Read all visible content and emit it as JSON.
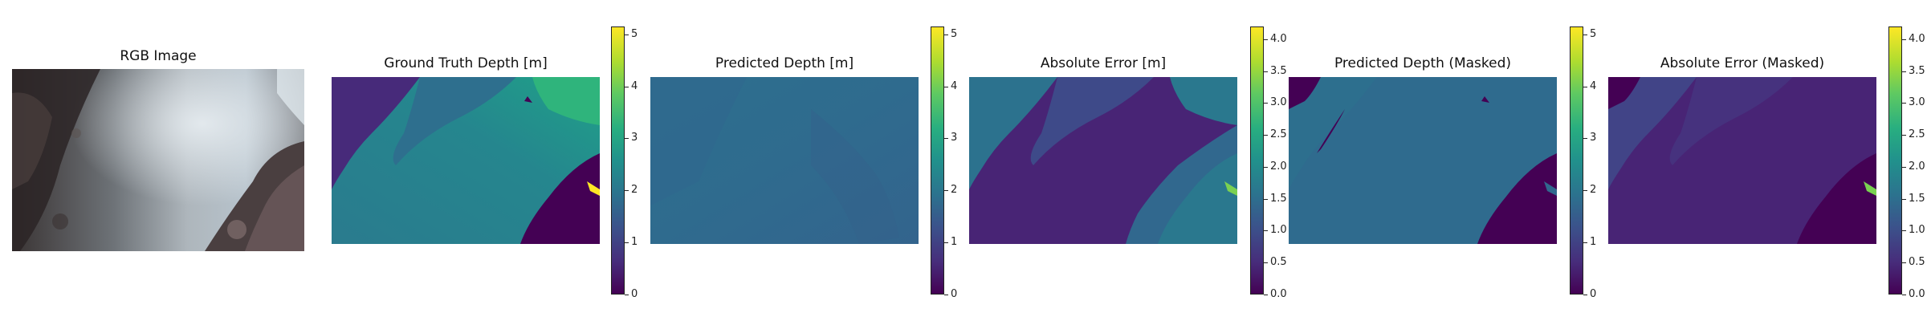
{
  "figure": {
    "panels": [
      {
        "title": "RGB Image"
      },
      {
        "title": "Ground Truth Depth [m]"
      },
      {
        "title": "Predicted Depth [m]"
      },
      {
        "title": "Absolute Error [m]"
      },
      {
        "title": "Predicted Depth (Masked)"
      },
      {
        "title": "Absolute Error (Masked)"
      }
    ],
    "colormap": "viridis"
  },
  "chart_data": [
    {
      "type": "heatmap",
      "title": "RGB Image",
      "content": "photograph"
    },
    {
      "type": "heatmap",
      "title": "Ground Truth Depth [m]",
      "colorbar": {
        "range": [
          0,
          5.15
        ],
        "ticks": [
          "0",
          "1",
          "2",
          "3",
          "4",
          "5"
        ]
      }
    },
    {
      "type": "heatmap",
      "title": "Predicted Depth [m]",
      "colorbar": {
        "range": [
          0,
          5.15
        ],
        "ticks": [
          "0",
          "1",
          "2",
          "3",
          "4",
          "5"
        ]
      }
    },
    {
      "type": "heatmap",
      "title": "Absolute Error [m]",
      "colorbar": {
        "range": [
          0,
          4.2
        ],
        "ticks": [
          "0.0",
          "0.5",
          "1.0",
          "1.5",
          "2.0",
          "2.5",
          "3.0",
          "3.5",
          "4.0"
        ]
      }
    },
    {
      "type": "heatmap",
      "title": "Predicted Depth (Masked)",
      "colorbar": {
        "range": [
          0,
          5.15
        ],
        "ticks": [
          "0",
          "1",
          "2",
          "3",
          "4",
          "5"
        ]
      }
    },
    {
      "type": "heatmap",
      "title": "Absolute Error (Masked)",
      "colorbar": {
        "range": [
          0,
          4.2
        ],
        "ticks": [
          "0.0",
          "0.5",
          "1.0",
          "1.5",
          "2.0",
          "2.5",
          "3.0",
          "3.5",
          "4.0"
        ]
      }
    }
  ]
}
